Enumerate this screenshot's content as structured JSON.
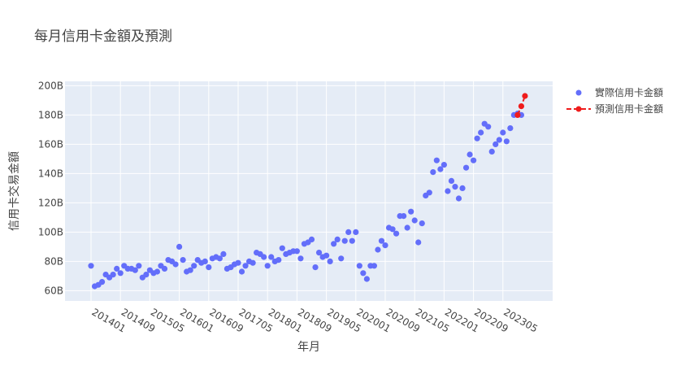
{
  "chart_data": {
    "type": "scatter",
    "title": "每月信用卡金額及預測",
    "xlabel": "年月",
    "ylabel": "信用卡交易金額",
    "ylim": [
      53,
      203
    ],
    "yticks": [
      60,
      80,
      100,
      120,
      140,
      160,
      180,
      200
    ],
    "ytick_labels": [
      "60B",
      "80B",
      "100B",
      "120B",
      "140B",
      "160B",
      "180B",
      "200B"
    ],
    "xtick_labels": [
      "201401",
      "201409",
      "201505",
      "201601",
      "201609",
      "201705",
      "201801",
      "201809",
      "201905",
      "202001",
      "202009",
      "202105",
      "202201",
      "202209",
      "202305"
    ],
    "x_start": "2014-01",
    "legend_position": "top-right",
    "grid": true,
    "colors": {
      "actual": "#636efa",
      "forecast": "#ef1c1c",
      "plot_bg": "#e5ecf6"
    },
    "series": [
      {
        "name": "實際信用卡金額",
        "mode": "markers",
        "values": [
          77,
          63,
          64,
          66,
          71,
          69,
          71,
          75,
          72,
          77,
          75,
          75,
          74,
          77,
          69,
          71,
          74,
          72,
          73,
          77,
          75,
          81,
          80,
          78,
          90,
          81,
          73,
          74,
          77,
          81,
          79,
          80,
          76,
          82,
          83,
          82,
          85,
          75,
          76,
          78,
          79,
          73,
          77,
          80,
          79,
          86,
          85,
          83,
          77,
          83,
          80,
          81,
          89,
          85,
          86,
          87,
          87,
          82,
          92,
          93,
          95,
          76,
          86,
          83,
          84,
          80,
          92,
          95,
          82,
          94,
          100,
          94,
          100,
          77,
          72,
          68,
          77,
          77,
          88,
          94,
          91,
          103,
          102,
          99,
          111,
          111,
          103,
          114,
          108,
          93,
          106,
          125,
          127,
          141,
          149,
          143,
          146,
          128,
          135,
          131,
          123,
          130,
          144,
          153,
          149,
          164,
          168,
          174,
          172,
          155,
          160,
          163,
          168,
          162,
          171,
          180,
          181,
          180
        ]
      },
      {
        "name": "預測信用卡金額",
        "mode": "lines+markers",
        "start_index": 116,
        "values": [
          180,
          186,
          193
        ]
      }
    ]
  }
}
